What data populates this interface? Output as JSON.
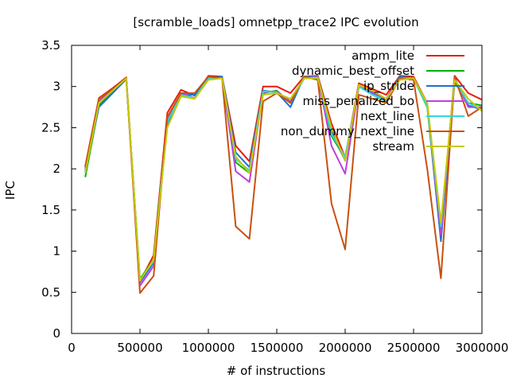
{
  "chart_data": {
    "type": "line",
    "title": "[scramble_loads] omnetpp_trace2 IPC evolution",
    "xlabel": "# of instructions",
    "ylabel": "IPC",
    "xlim": [
      0,
      3000000
    ],
    "ylim": [
      0,
      3.5
    ],
    "xticks": [
      0,
      500000,
      1000000,
      1500000,
      2000000,
      2500000,
      3000000
    ],
    "xtick_labels": [
      "0",
      "500000",
      "1000000",
      "1500000",
      "2000000",
      "2500000",
      "3000000"
    ],
    "yticks": [
      0,
      0.5,
      1,
      1.5,
      2,
      2.5,
      3,
      3.5
    ],
    "ytick_labels": [
      "0",
      "0.5",
      "1",
      "1.5",
      "2",
      "2.5",
      "3",
      "3.5"
    ],
    "grid": false,
    "legend_position": "top-right",
    "x": [
      100000,
      200000,
      300000,
      400000,
      500000,
      600000,
      700000,
      800000,
      900000,
      1000000,
      1100000,
      1200000,
      1300000,
      1400000,
      1500000,
      1600000,
      1700000,
      1800000,
      1900000,
      2000000,
      2100000,
      2200000,
      2300000,
      2400000,
      2500000,
      2600000,
      2700000,
      2800000,
      2900000,
      3000000
    ],
    "series": [
      {
        "name": "ampm_lite",
        "color": "#e51e10",
        "values": [
          2.03,
          2.86,
          2.98,
          3.11,
          0.63,
          0.95,
          2.68,
          2.96,
          2.89,
          3.13,
          3.12,
          2.28,
          2.09,
          3.0,
          3.0,
          2.92,
          3.12,
          3.13,
          2.55,
          2.14,
          3.04,
          2.97,
          2.9,
          3.13,
          3.12,
          2.8,
          1.25,
          3.13,
          2.92,
          2.84
        ]
      },
      {
        "name": "dynamic_best_offset",
        "color": "#00b000",
        "values": [
          1.9,
          2.77,
          2.93,
          3.09,
          0.66,
          0.9,
          2.58,
          2.9,
          2.86,
          3.1,
          3.1,
          2.08,
          1.95,
          2.92,
          2.95,
          2.8,
          3.1,
          3.1,
          2.4,
          2.13,
          3.0,
          2.9,
          2.82,
          3.1,
          3.1,
          2.75,
          1.15,
          3.05,
          2.8,
          2.77
        ]
      },
      {
        "name": "ip_stride",
        "color": "#1e6fd0",
        "values": [
          1.97,
          2.75,
          2.92,
          3.09,
          0.62,
          0.86,
          2.55,
          2.9,
          2.9,
          3.1,
          3.12,
          2.2,
          2.02,
          2.95,
          2.93,
          2.75,
          3.12,
          3.12,
          2.45,
          2.1,
          3.0,
          2.92,
          2.85,
          3.12,
          3.1,
          2.78,
          1.12,
          3.1,
          2.77,
          2.72
        ]
      },
      {
        "name": "miss_penalized_bo",
        "color": "#c040d8",
        "values": [
          2.0,
          2.82,
          2.97,
          3.1,
          0.58,
          0.82,
          2.6,
          2.92,
          2.86,
          3.11,
          3.1,
          1.97,
          1.84,
          2.93,
          2.94,
          2.82,
          3.1,
          3.12,
          2.28,
          1.94,
          3.0,
          2.93,
          2.85,
          3.1,
          3.1,
          2.78,
          1.2,
          3.1,
          2.75,
          2.75
        ]
      },
      {
        "name": "next_line",
        "color": "#30d8d8",
        "values": [
          1.95,
          2.8,
          2.95,
          3.1,
          0.65,
          0.88,
          2.57,
          2.9,
          2.86,
          3.1,
          3.1,
          2.12,
          1.98,
          2.94,
          2.93,
          2.8,
          3.1,
          3.11,
          2.42,
          2.15,
          3.0,
          2.9,
          2.83,
          3.1,
          3.1,
          2.76,
          1.3,
          3.08,
          2.8,
          2.72
        ]
      },
      {
        "name": "non_dummy_next_line",
        "color": "#c85010",
        "values": [
          2.02,
          2.85,
          2.97,
          3.1,
          0.49,
          0.7,
          2.63,
          2.92,
          2.92,
          3.12,
          3.1,
          1.3,
          1.15,
          2.82,
          2.92,
          2.8,
          3.12,
          3.08,
          1.58,
          1.02,
          2.9,
          2.85,
          2.8,
          3.1,
          3.08,
          2.0,
          0.67,
          3.12,
          2.64,
          2.75
        ]
      },
      {
        "name": "stream",
        "color": "#c8c800",
        "values": [
          1.95,
          2.8,
          2.95,
          3.1,
          0.64,
          0.9,
          2.5,
          2.88,
          2.85,
          3.08,
          3.1,
          2.15,
          1.95,
          2.9,
          2.92,
          2.85,
          3.1,
          3.1,
          2.5,
          2.1,
          3.02,
          2.95,
          2.85,
          3.08,
          3.1,
          2.8,
          1.35,
          3.08,
          2.85,
          2.7
        ]
      }
    ]
  }
}
